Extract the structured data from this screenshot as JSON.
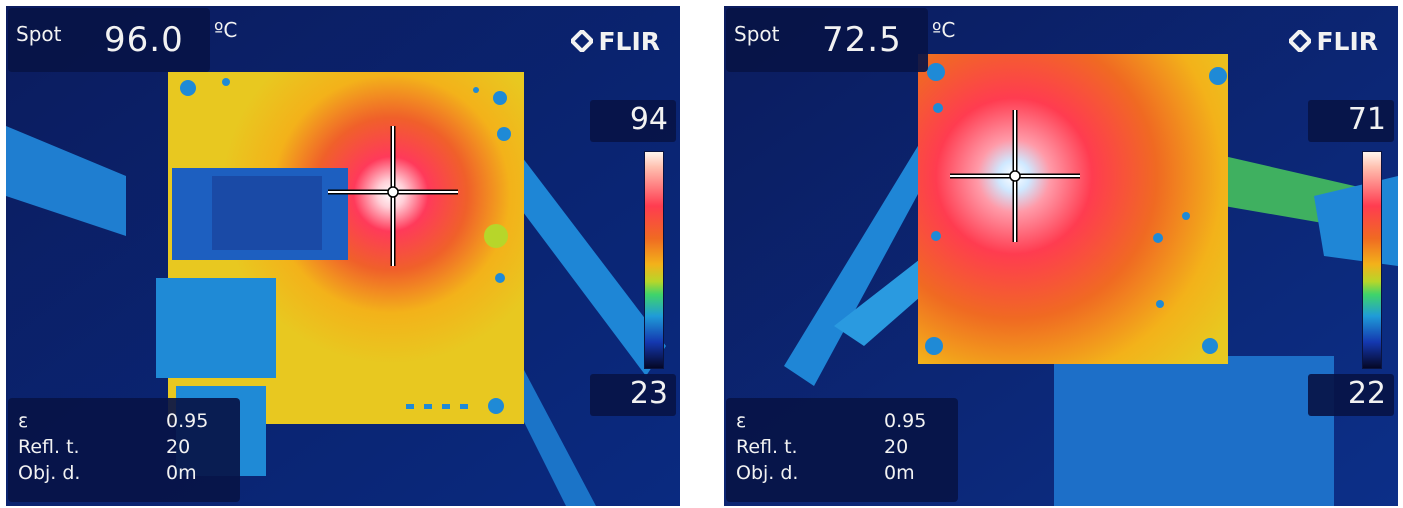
{
  "images": [
    {
      "spot_label": "Spot",
      "spot_value": "96.0",
      "unit": "ºC",
      "brand": "FLIR",
      "scale_max": "94",
      "scale_min": "23",
      "params": [
        {
          "label": "ε",
          "value": "0.95"
        },
        {
          "label": "Refl. t.",
          "value": "20"
        },
        {
          "label": "Obj. d.",
          "value": "0m"
        }
      ]
    },
    {
      "spot_label": "Spot",
      "spot_value": "72.5",
      "unit": "ºC",
      "brand": "FLIR",
      "scale_max": "71",
      "scale_min": "22",
      "params": [
        {
          "label": "ε",
          "value": "0.95"
        },
        {
          "label": "Refl. t.",
          "value": "20"
        },
        {
          "label": "Obj. d.",
          "value": "0m"
        }
      ]
    }
  ],
  "colors": {
    "background": "#0a1a55",
    "overlay": "#081446",
    "text": "#f2f2f2",
    "hot": "#ff3c50",
    "warm": "#f3b21a",
    "cool": "#1f9bd8",
    "cold": "#050726"
  }
}
